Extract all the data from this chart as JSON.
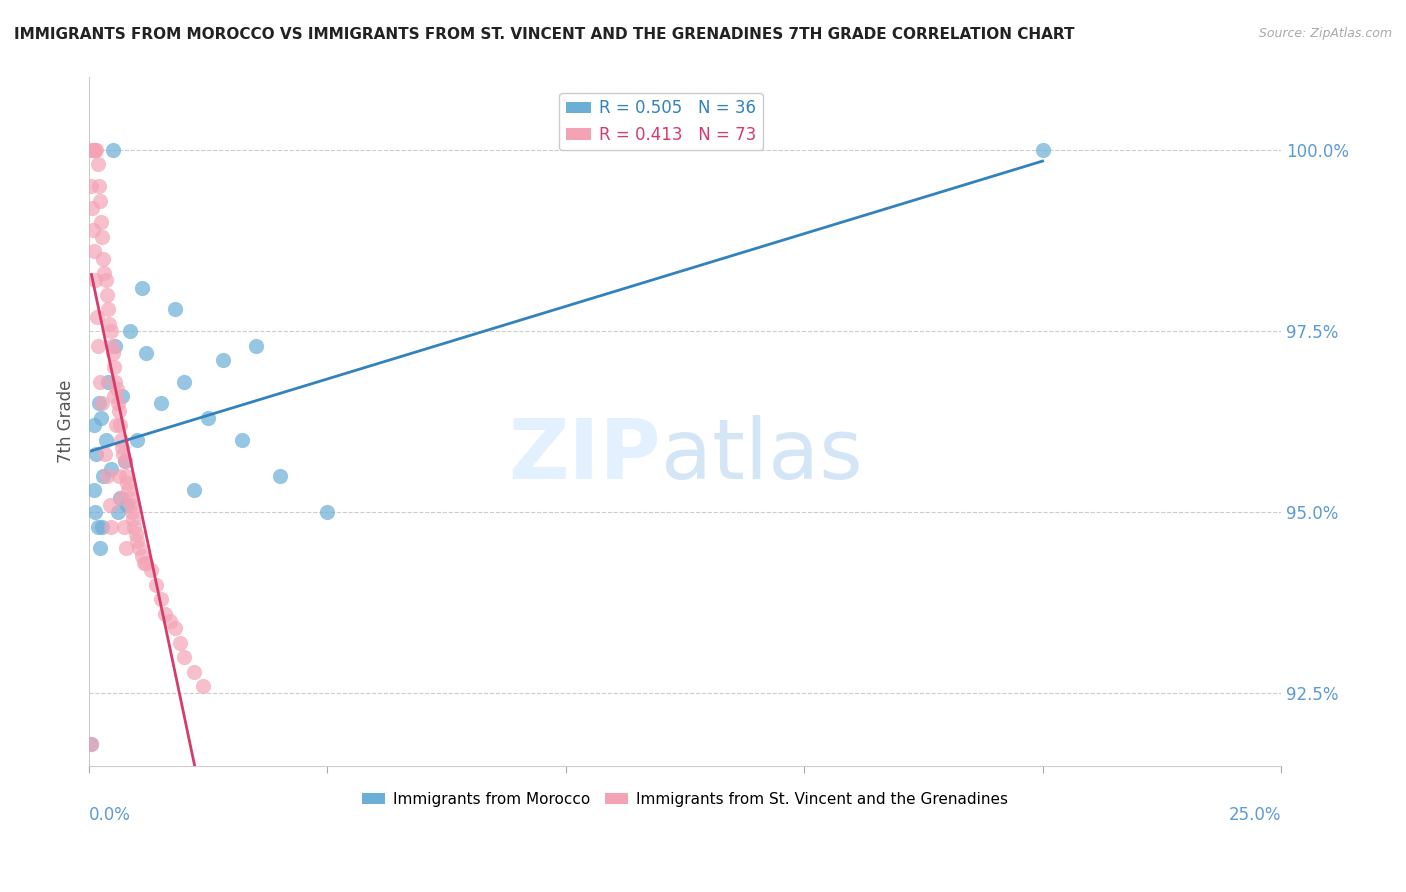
{
  "title": "IMMIGRANTS FROM MOROCCO VS IMMIGRANTS FROM ST. VINCENT AND THE GRENADINES 7TH GRADE CORRELATION CHART",
  "source": "Source: ZipAtlas.com",
  "ylabel": "7th Grade",
  "yticks": [
    92.5,
    95.0,
    97.5,
    100.0
  ],
  "ytick_labels": [
    "92.5%",
    "95.0%",
    "97.5%",
    "100.0%"
  ],
  "xlim": [
    0.0,
    25.0
  ],
  "ylim": [
    91.5,
    101.0
  ],
  "legend_blue_r": "0.505",
  "legend_blue_n": "36",
  "legend_pink_r": "0.413",
  "legend_pink_n": "73",
  "color_blue": "#6baed6",
  "color_pink": "#f4a3b5",
  "color_blue_line": "#3182bd",
  "color_pink_line": "#d63b6a",
  "color_axis_labels": "#5b9bd5",
  "blue_x": [
    0.1,
    0.15,
    0.2,
    0.25,
    0.3,
    0.35,
    0.4,
    0.55,
    0.6,
    0.65,
    0.7,
    0.75,
    0.8,
    0.85,
    1.0,
    1.1,
    1.2,
    1.5,
    1.8,
    2.0,
    2.2,
    2.5,
    2.8,
    3.2,
    3.5,
    4.0,
    5.0,
    0.1,
    0.12,
    0.18,
    0.22,
    0.28,
    0.45,
    0.5,
    20.0,
    0.05
  ],
  "blue_y": [
    96.2,
    95.8,
    96.5,
    96.3,
    95.5,
    96.0,
    96.8,
    97.3,
    95.0,
    95.2,
    96.6,
    95.7,
    95.1,
    97.5,
    96.0,
    98.1,
    97.2,
    96.5,
    97.8,
    96.8,
    95.3,
    96.3,
    97.1,
    96.0,
    97.3,
    95.5,
    95.0,
    95.3,
    95.0,
    94.8,
    94.5,
    94.8,
    95.6,
    100.0,
    100.0,
    91.8
  ],
  "pink_x": [
    0.05,
    0.08,
    0.1,
    0.12,
    0.15,
    0.18,
    0.2,
    0.22,
    0.25,
    0.28,
    0.3,
    0.32,
    0.35,
    0.38,
    0.4,
    0.42,
    0.45,
    0.48,
    0.5,
    0.52,
    0.55,
    0.58,
    0.6,
    0.62,
    0.65,
    0.68,
    0.7,
    0.72,
    0.75,
    0.78,
    0.8,
    0.82,
    0.85,
    0.88,
    0.9,
    0.92,
    0.95,
    0.98,
    1.0,
    1.05,
    1.1,
    1.15,
    1.2,
    1.3,
    1.4,
    1.5,
    1.6,
    1.7,
    1.8,
    1.9,
    2.0,
    2.2,
    2.4,
    0.05,
    0.07,
    0.09,
    0.11,
    0.13,
    0.16,
    0.19,
    0.23,
    0.27,
    0.33,
    0.37,
    0.43,
    0.47,
    0.53,
    0.57,
    0.63,
    0.67,
    0.73,
    0.77,
    0.05
  ],
  "pink_y": [
    100.0,
    100.0,
    100.0,
    100.0,
    100.0,
    99.8,
    99.5,
    99.3,
    99.0,
    98.8,
    98.5,
    98.3,
    98.2,
    98.0,
    97.8,
    97.6,
    97.5,
    97.3,
    97.2,
    97.0,
    96.8,
    96.7,
    96.5,
    96.4,
    96.2,
    96.0,
    95.9,
    95.8,
    95.7,
    95.5,
    95.4,
    95.3,
    95.2,
    95.1,
    95.0,
    94.9,
    94.8,
    94.7,
    94.6,
    94.5,
    94.4,
    94.3,
    94.3,
    94.2,
    94.0,
    93.8,
    93.6,
    93.5,
    93.4,
    93.2,
    93.0,
    92.8,
    92.6,
    99.5,
    99.2,
    98.9,
    98.6,
    98.2,
    97.7,
    97.3,
    96.8,
    96.5,
    95.8,
    95.5,
    95.1,
    94.8,
    96.6,
    96.2,
    95.5,
    95.2,
    94.8,
    94.5,
    91.8
  ],
  "legend_label_blue": "Immigrants from Morocco",
  "legend_label_pink": "Immigrants from St. Vincent and the Grenadines"
}
